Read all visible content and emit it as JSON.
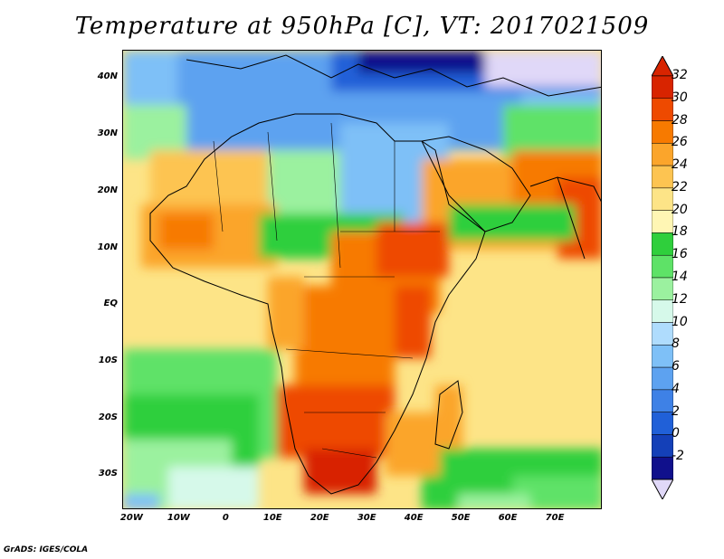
{
  "title": "Temperature at 950hPa [C], VT: 2017021509",
  "credit": "GrADS: IGES/COLA",
  "map": {
    "lat_range": [
      -36,
      45
    ],
    "lon_range": [
      -22,
      80
    ],
    "lat_labels": [
      {
        "lat": 40,
        "text": "40N"
      },
      {
        "lat": 30,
        "text": "30N"
      },
      {
        "lat": 20,
        "text": "20N"
      },
      {
        "lat": 10,
        "text": "10N"
      },
      {
        "lat": 0,
        "text": "EQ"
      },
      {
        "lat": -10,
        "text": "10S"
      },
      {
        "lat": -20,
        "text": "20S"
      },
      {
        "lat": -30,
        "text": "30S"
      }
    ],
    "lon_labels": [
      {
        "lon": -20,
        "text": "20W"
      },
      {
        "lon": -10,
        "text": "10W"
      },
      {
        "lon": 0,
        "text": "0"
      },
      {
        "lon": 10,
        "text": "10E"
      },
      {
        "lon": 20,
        "text": "20E"
      },
      {
        "lon": 30,
        "text": "30E"
      },
      {
        "lon": 40,
        "text": "40E"
      },
      {
        "lon": 50,
        "text": "50E"
      },
      {
        "lon": 60,
        "text": "60E"
      },
      {
        "lon": 70,
        "text": "70E"
      }
    ]
  },
  "colorbar": {
    "labels": [
      "32",
      "30",
      "28",
      "26",
      "24",
      "22",
      "20",
      "18",
      "16",
      "14",
      "12",
      "10",
      "8",
      "6",
      "4",
      "2",
      "0",
      "-2"
    ],
    "colors": [
      "#d82400",
      "#ee4a00",
      "#f77a00",
      "#fba52b",
      "#fdc451",
      "#fde487",
      "#fff6b4",
      "#2fcf3c",
      "#5ee267",
      "#9bf19f",
      "#d6f9ea",
      "#afdcfd",
      "#7ec0f7",
      "#5da2f0",
      "#3e81e6",
      "#2060d8",
      "#1440b8",
      "#10108c"
    ],
    "top_color": "#d82400",
    "bottom_color": "#e0d8f8"
  }
}
